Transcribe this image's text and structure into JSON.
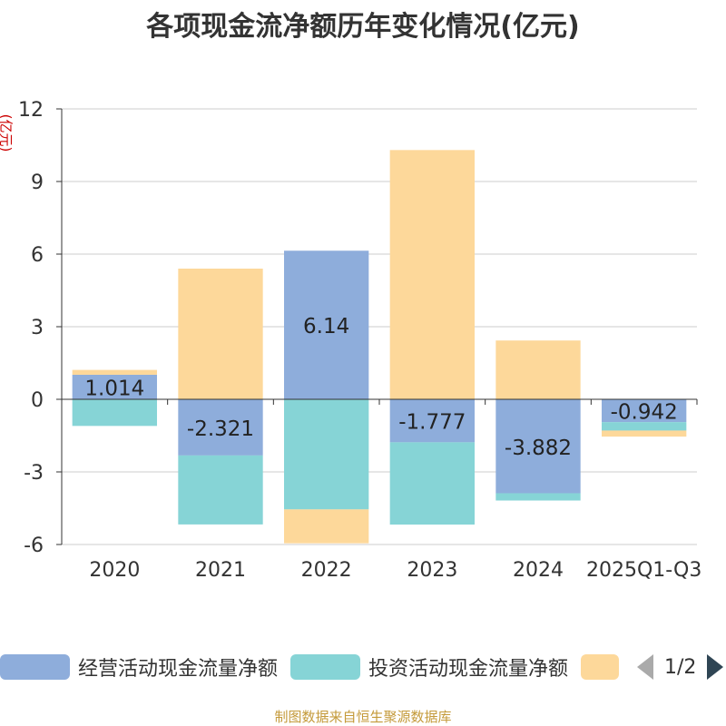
{
  "chart_data": {
    "type": "bar",
    "stacked": true,
    "title": "各项现金流净额历年变化情况(亿元)",
    "ylabel": "(亿元)",
    "categories": [
      "2020",
      "2021",
      "2022",
      "2023",
      "2024",
      "2025Q1-Q3"
    ],
    "ylim": [
      -6,
      12
    ],
    "yticks": [
      -6,
      -3,
      0,
      3,
      6,
      9,
      12
    ],
    "ytick_labels": [
      "-6",
      "-3",
      "0",
      "3",
      "6",
      "9",
      "12"
    ],
    "grid": true,
    "series": [
      {
        "name": "经营活动现金流量净额",
        "color": "#8eaddb",
        "values": [
          1.014,
          -2.321,
          6.14,
          -1.777,
          -3.882,
          -0.942
        ]
      },
      {
        "name": "投资活动现金流量净额",
        "color": "#86d4d6",
        "values": [
          -1.1,
          -2.85,
          -4.55,
          -3.4,
          -0.3,
          -0.35
        ]
      },
      {
        "name": "",
        "color": "#fdd89a",
        "values": [
          0.2,
          5.4,
          -1.4,
          10.3,
          2.43,
          -0.25
        ]
      }
    ],
    "data_labels": [
      "1.014",
      "-2.321",
      "6.14",
      "-1.777",
      "-3.882",
      "-0.942"
    ]
  },
  "legend": {
    "items": [
      "经营活动现金流量净额",
      "投资活动现金流量净额",
      ""
    ],
    "page": "1/2"
  },
  "source": "制图数据来自恒生聚源数据库"
}
